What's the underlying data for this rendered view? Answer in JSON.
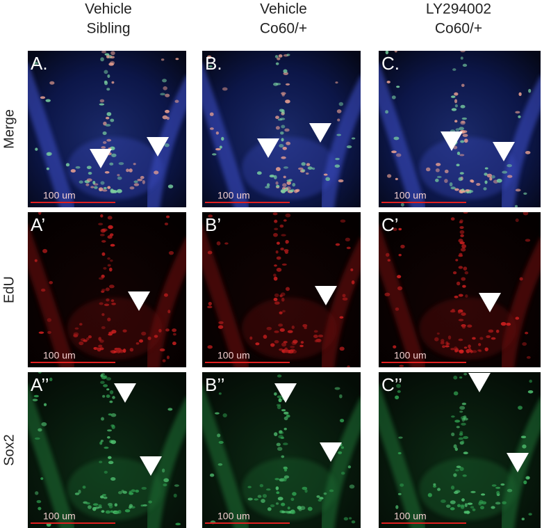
{
  "columns": [
    {
      "line1": "Vehicle",
      "line2": "Sibling"
    },
    {
      "line1": "Vehicle",
      "line2": "Co60/+"
    },
    {
      "line1": "LY294002",
      "line2": "Co60/+"
    }
  ],
  "rows": [
    "Merge",
    "EdU",
    "Sox2"
  ],
  "panels": [
    [
      {
        "label": "A.",
        "scale_bar": "100 um"
      },
      {
        "label": "B.",
        "scale_bar": "100 um"
      },
      {
        "label": "C.",
        "scale_bar": "100 um"
      }
    ],
    [
      {
        "label": "A’",
        "scale_bar": "100 um"
      },
      {
        "label": "B’",
        "scale_bar": "100 um"
      },
      {
        "label": "C’",
        "scale_bar": "100 um"
      }
    ],
    [
      {
        "label": "A’’",
        "scale_bar": "100 um"
      },
      {
        "label": "B’’",
        "scale_bar": "100 um"
      },
      {
        "label": "C’’",
        "scale_bar": "100 um"
      }
    ]
  ]
}
